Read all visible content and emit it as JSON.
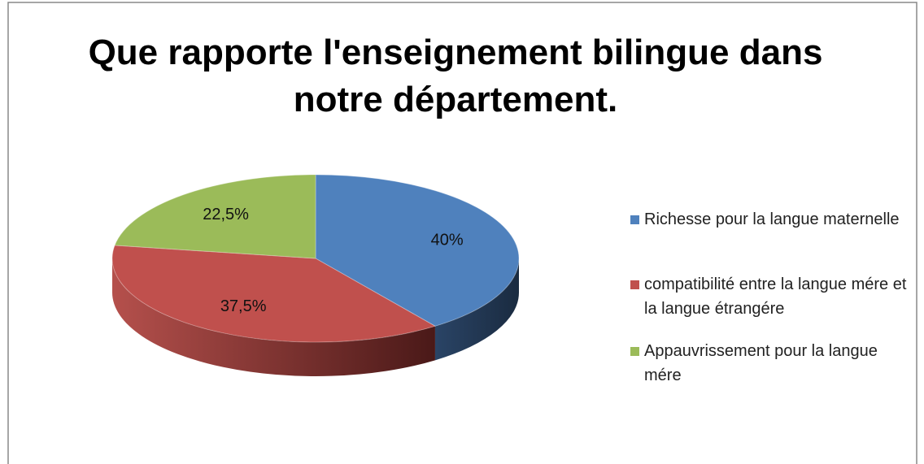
{
  "chart_data": {
    "type": "pie3d",
    "title": "Que rapporte l'enseignement bilingue dans notre département.",
    "categories": [
      "Richesse pour la langue maternelle",
      "compatibilité entre la langue mére et la langue étrangére",
      "Appauvrissement pour la langue mére"
    ],
    "values": [
      40,
      37.5,
      22.5
    ],
    "value_labels": [
      "40%",
      "37,5%",
      "22,5%"
    ],
    "colors": [
      "#4f81bd",
      "#c0504d",
      "#9bbb59"
    ],
    "legend": "right"
  }
}
